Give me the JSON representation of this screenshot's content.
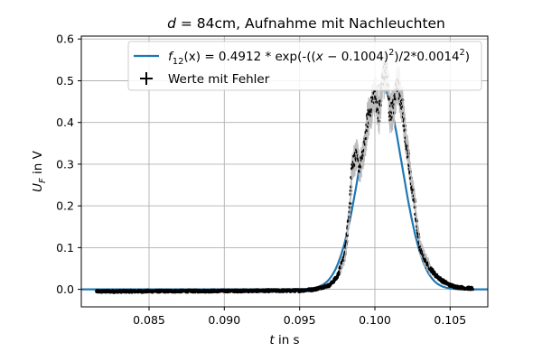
{
  "chart_data": {
    "type": "scatter",
    "title": "d = 84cm, Aufnahme mit Nachleuchten",
    "title_parts": {
      "var": "d",
      "rest": " = 84cm, Aufnahme mit Nachleuchten"
    },
    "xlabel": "t in s",
    "xlabel_parts": {
      "var": "t",
      "rest": " in s"
    },
    "ylabel": "U_F in V",
    "ylabel_parts": {
      "var": "U",
      "sub": "F",
      "rest": " in V"
    },
    "xlim": [
      0.0805,
      0.1075
    ],
    "ylim": [
      -0.042,
      0.607
    ],
    "xticks": [
      0.085,
      0.09,
      0.095,
      0.1,
      0.105
    ],
    "xtick_labels": [
      "0.085",
      "0.090",
      "0.095",
      "0.100",
      "0.105"
    ],
    "yticks": [
      0.0,
      0.1,
      0.2,
      0.3,
      0.4,
      0.5,
      0.6
    ],
    "ytick_labels": [
      "0.0",
      "0.1",
      "0.2",
      "0.3",
      "0.4",
      "0.5",
      "0.6"
    ],
    "grid": true,
    "legend_placement": "top-right",
    "legend": [
      {
        "label": "f12(x) = 0.4912 * exp(-((x − 0.1004)²)/2*0.0014²)",
        "marker": "line",
        "color": "#1f77b4"
      },
      {
        "label": "Werte mit Fehler",
        "marker": "plus",
        "color": "#000000"
      }
    ],
    "legend_fit_parts": {
      "f": "f",
      "sub": "12",
      "pre": "(x) = 0.4912 * exp(-((",
      "var": "x",
      "mid": " − 0.1004)",
      "sup1": "2",
      "post": ")/2*0.0014",
      "sup2": "2",
      "end": ")"
    },
    "fit": {
      "name": "f12",
      "amplitude": 0.4912,
      "mean": 0.1004,
      "sigma": 0.0014,
      "color": "#1f77b4"
    },
    "series": [
      {
        "name": "Werte mit Fehler",
        "color": "#000000",
        "error_color": "#bdbdbd",
        "x_range": [
          0.0815,
          0.1065
        ],
        "profile_x": [
          0.0815,
          0.095,
          0.096,
          0.097,
          0.0975,
          0.098,
          0.0983,
          0.0985,
          0.0988,
          0.099,
          0.0993,
          0.0995,
          0.0998,
          0.1,
          0.1003,
          0.1005,
          0.1008,
          0.101,
          0.1013,
          0.1015,
          0.1018,
          0.102,
          0.1022,
          0.1024,
          0.1026,
          0.1028,
          0.103,
          0.1033,
          0.1036,
          0.104,
          0.1045,
          0.105,
          0.1055,
          0.106,
          0.1065
        ],
        "profile_y": [
          -0.005,
          -0.003,
          0.0,
          0.01,
          0.03,
          0.08,
          0.18,
          0.3,
          0.32,
          0.29,
          0.33,
          0.4,
          0.44,
          0.47,
          0.42,
          0.5,
          0.53,
          0.42,
          0.44,
          0.5,
          0.45,
          0.38,
          0.32,
          0.26,
          0.22,
          0.15,
          0.1,
          0.075,
          0.055,
          0.035,
          0.02,
          0.01,
          0.005,
          0.003,
          0.002
        ]
      }
    ]
  }
}
